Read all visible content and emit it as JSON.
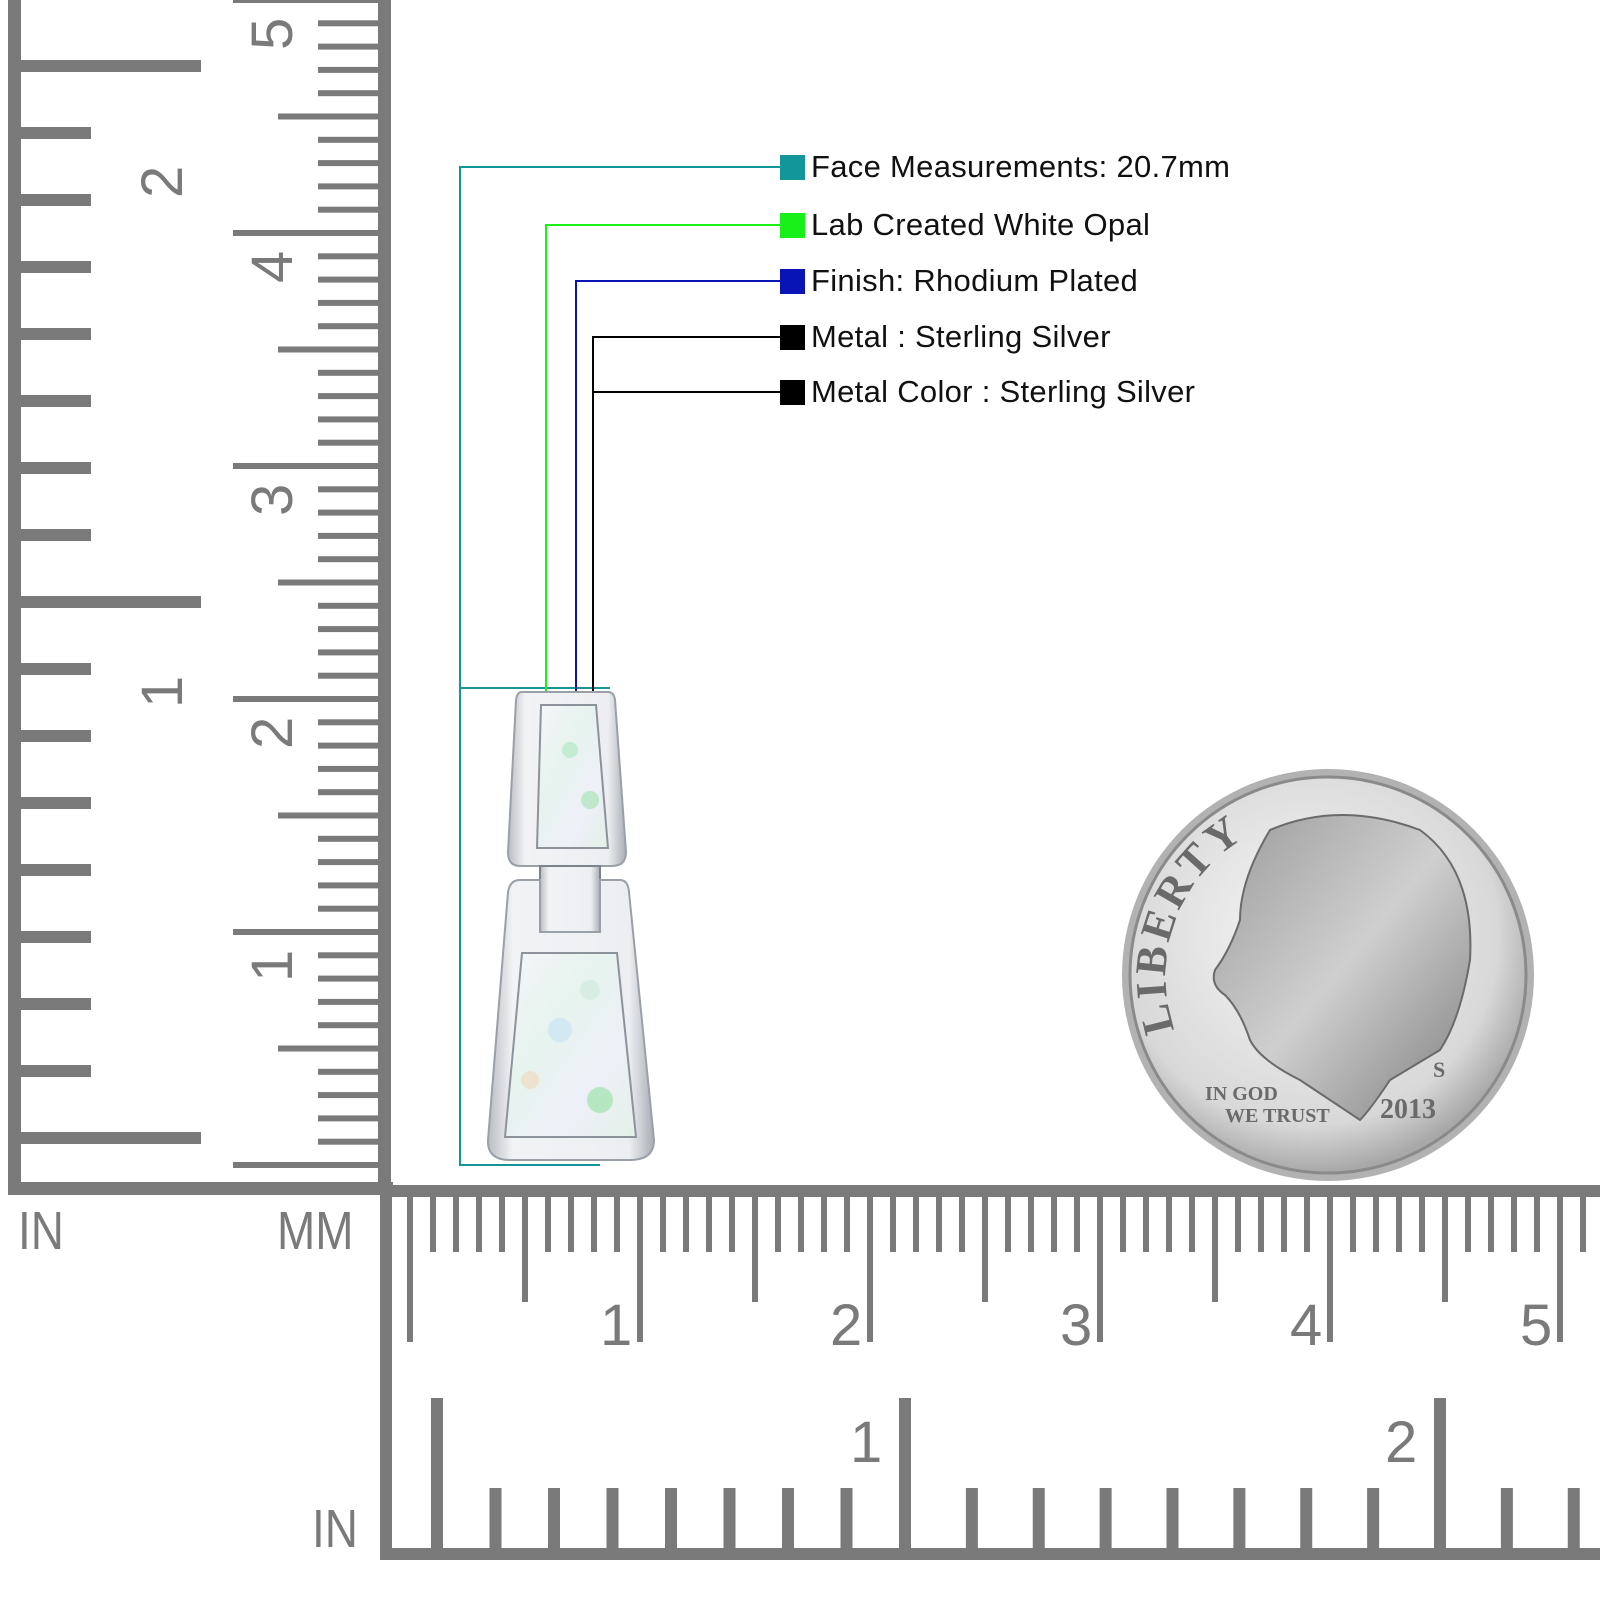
{
  "legend": [
    {
      "label": "Face Measurements: 20.7mm",
      "color": "#12969a"
    },
    {
      "label": "Lab Created White Opal",
      "color": "#19f019"
    },
    {
      "label": "Finish: Rhodium Plated",
      "color": "#0a14b4"
    },
    {
      "label": "Metal : Sterling Silver",
      "color": "#000000"
    },
    {
      "label": "Metal Color : Sterling Silver",
      "color": "#000000"
    }
  ],
  "rulers": {
    "left_in_label": "IN",
    "left_mm_label": "MM",
    "bottom_in_label": "IN",
    "left_mm_numbers": [
      "1",
      "2",
      "3",
      "4",
      "5"
    ],
    "left_in_numbers": [
      "1",
      "2"
    ],
    "bottom_mm_numbers": [
      "1",
      "2",
      "3",
      "4",
      "5"
    ],
    "bottom_in_numbers": [
      "1",
      "2"
    ],
    "color": "#7a7a7a"
  },
  "coin": {
    "top_text": "LIBERTY",
    "motto_line1": "IN GOD",
    "motto_line2": "WE TRUST",
    "year": "2013",
    "mint_mark": "S"
  }
}
